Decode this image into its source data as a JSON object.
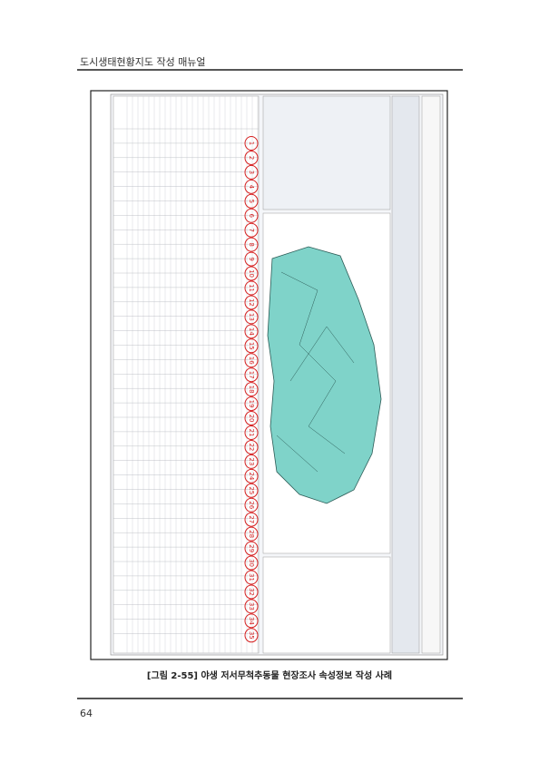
{
  "header": {
    "title": "도시생태현황지도 작성 매뉴얼"
  },
  "figure": {
    "caption": "[그림 2-55] 야생 저서무척추동물 현장조사 속성정보 작성 사례",
    "markers": [
      "1",
      "2",
      "3",
      "4",
      "5",
      "6",
      "7",
      "8",
      "9",
      "10",
      "11",
      "12",
      "13",
      "14",
      "15",
      "16",
      "17",
      "18",
      "19",
      "20",
      "21",
      "22",
      "23",
      "24",
      "25",
      "26",
      "27",
      "28",
      "29",
      "30",
      "31",
      "32",
      "33",
      "34",
      "35"
    ]
  },
  "footer": {
    "page_number": "64"
  }
}
